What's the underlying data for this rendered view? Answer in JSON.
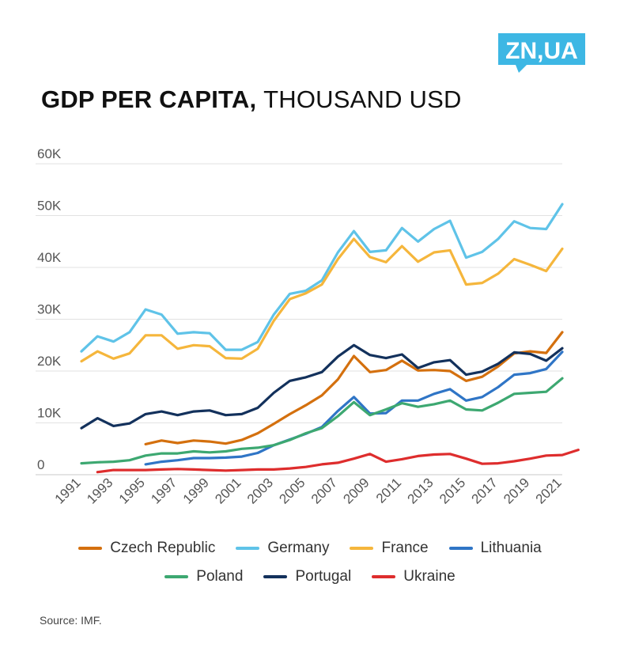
{
  "logo": {
    "text": "ZN,UA",
    "color": "#3db7e4"
  },
  "title": {
    "bold": "GDP PER CAPITA,",
    "light": "THOUSAND USD"
  },
  "source": "Source: IMF.",
  "chart_data": {
    "type": "line",
    "title": "GDP PER CAPITA, THOUSAND USD",
    "xlabel": "",
    "ylabel": "",
    "xlim": [
      1991,
      2021
    ],
    "ylim": [
      0,
      60
    ],
    "yticks": [
      {
        "value": 0,
        "label": "0"
      },
      {
        "value": 10,
        "label": "10K"
      },
      {
        "value": 20,
        "label": "20K"
      },
      {
        "value": 30,
        "label": "30K"
      },
      {
        "value": 40,
        "label": "40K"
      },
      {
        "value": 50,
        "label": "50K"
      },
      {
        "value": 60,
        "label": "60K"
      }
    ],
    "xticks": [
      1991,
      1993,
      1995,
      1997,
      1999,
      2001,
      2003,
      2005,
      2007,
      2009,
      2011,
      2013,
      2015,
      2017,
      2019,
      2021
    ],
    "grid": "horizontal",
    "legend_position": "bottom",
    "series": [
      {
        "name": "Czech Republic",
        "color": "#d4700e",
        "start_year": 1995,
        "values": [
          5.9,
          6.6,
          6.1,
          6.6,
          6.4,
          6.0,
          6.7,
          8.0,
          9.8,
          11.7,
          13.4,
          15.3,
          18.4,
          22.9,
          19.8,
          20.2,
          22.0,
          20.1,
          20.2,
          20.0,
          18.1,
          18.9,
          20.9,
          23.4,
          23.8,
          23.5,
          27.5
        ]
      },
      {
        "name": "Germany",
        "color": "#5fc3e8",
        "start_year": 1991,
        "values": [
          23.8,
          26.7,
          25.7,
          27.5,
          31.9,
          30.9,
          27.2,
          27.5,
          27.3,
          24.1,
          24.1,
          25.6,
          30.9,
          34.9,
          35.5,
          37.5,
          42.9,
          47.0,
          43.0,
          43.3,
          47.6,
          45.0,
          47.4,
          49.0,
          41.9,
          43.0,
          45.5,
          48.9,
          47.6,
          47.4,
          52.2
        ]
      },
      {
        "name": "France",
        "color": "#f5b63c",
        "start_year": 1991,
        "values": [
          21.9,
          23.8,
          22.4,
          23.4,
          26.9,
          26.9,
          24.3,
          25.0,
          24.8,
          22.5,
          22.4,
          24.3,
          29.7,
          33.9,
          35.0,
          36.7,
          41.6,
          45.5,
          42.0,
          41.0,
          44.1,
          41.1,
          42.9,
          43.3,
          36.7,
          37.0,
          38.8,
          41.6,
          40.5,
          39.3,
          43.6
        ]
      },
      {
        "name": "Lithuania",
        "color": "#2f75c6",
        "start_year": 1995,
        "values": [
          2.0,
          2.5,
          2.8,
          3.2,
          3.2,
          3.3,
          3.5,
          4.2,
          5.7,
          6.8,
          7.9,
          9.2,
          12.3,
          15.0,
          11.8,
          11.9,
          14.3,
          14.3,
          15.6,
          16.5,
          14.3,
          15.0,
          16.9,
          19.3,
          19.6,
          20.4,
          23.7
        ]
      },
      {
        "name": "Poland",
        "color": "#3da871",
        "start_year": 1991,
        "values": [
          2.2,
          2.4,
          2.5,
          2.8,
          3.7,
          4.1,
          4.1,
          4.5,
          4.3,
          4.5,
          5.0,
          5.2,
          5.7,
          6.7,
          8.0,
          9.0,
          11.3,
          14.0,
          11.5,
          12.6,
          13.8,
          13.1,
          13.6,
          14.3,
          12.6,
          12.4,
          13.9,
          15.6,
          15.8,
          16.0,
          18.6
        ]
      },
      {
        "name": "Portugal",
        "color": "#13315c",
        "start_year": 1991,
        "values": [
          9.0,
          10.9,
          9.4,
          9.9,
          11.7,
          12.2,
          11.5,
          12.2,
          12.4,
          11.5,
          11.7,
          12.9,
          15.8,
          18.1,
          18.8,
          19.8,
          22.8,
          25.0,
          23.1,
          22.5,
          23.2,
          20.6,
          21.7,
          22.1,
          19.3,
          19.9,
          21.4,
          23.6,
          23.3,
          22.0,
          24.4
        ]
      },
      {
        "name": "Ukraine",
        "color": "#de2d2d",
        "start_year": 1992,
        "values": [
          0.5,
          0.9,
          0.9,
          0.9,
          1.0,
          1.1,
          1.0,
          0.9,
          0.8,
          0.9,
          1.0,
          1.0,
          1.2,
          1.5,
          2.0,
          2.3,
          3.1,
          4.0,
          2.5,
          3.0,
          3.6,
          3.9,
          4.0,
          3.1,
          2.1,
          2.2,
          2.6,
          3.1,
          3.7,
          3.8,
          4.8
        ]
      }
    ]
  }
}
